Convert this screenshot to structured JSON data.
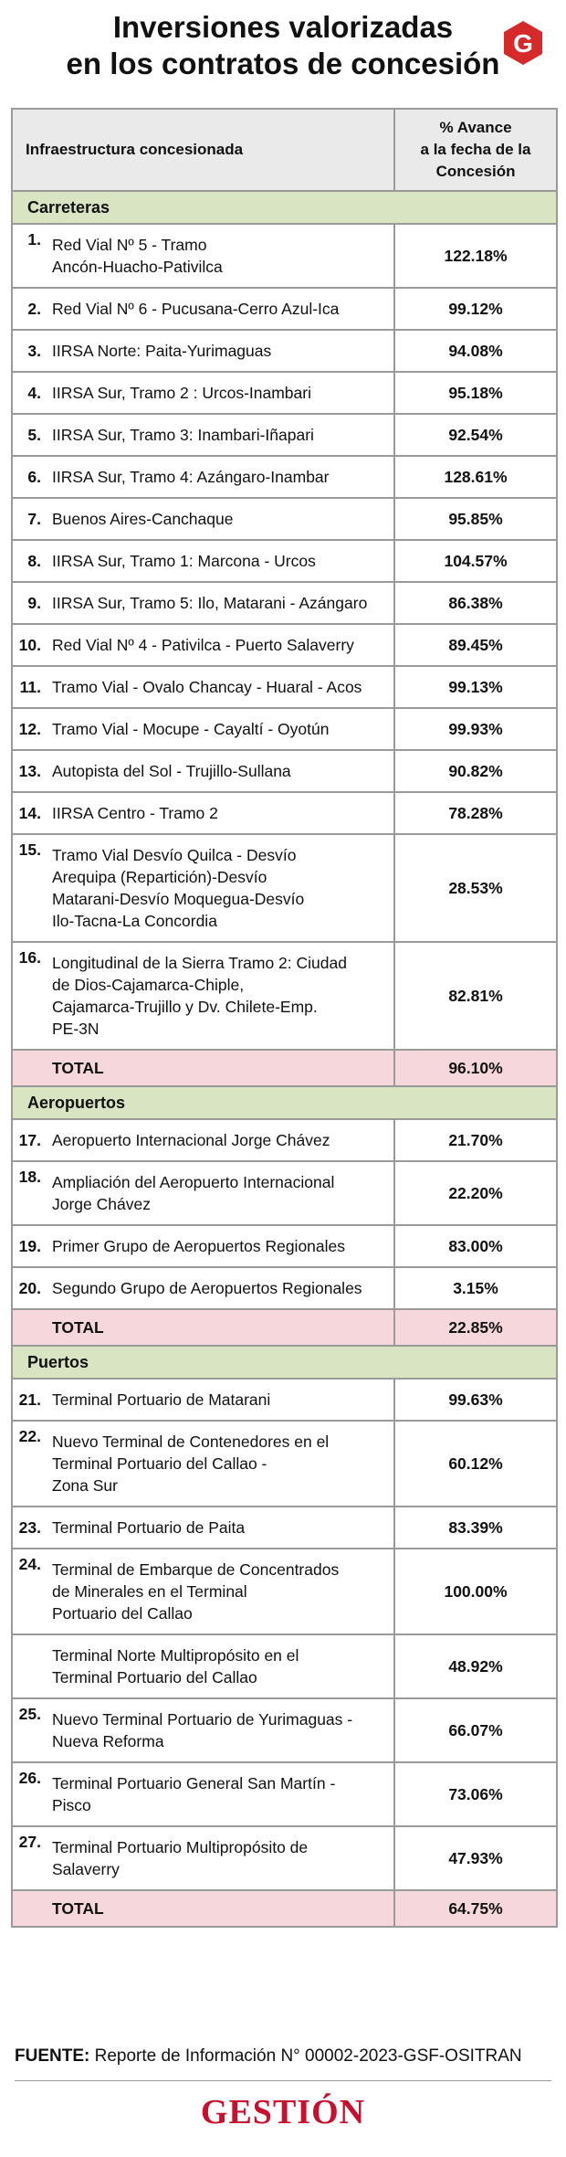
{
  "title_line1": "Inversiones valorizadas",
  "title_line2": "en los contratos de concesión",
  "logo": {
    "icon": "gestion-g-logo",
    "color": "#d62a2a"
  },
  "table": {
    "col_name_header": "Infraestructura concesionada",
    "col_value_header_lines": [
      "% Avance",
      "a la fecha de la",
      "Concesión"
    ],
    "sections": [
      {
        "label": "Carreteras",
        "rows": [
          {
            "num": "1.",
            "lines": [
              "Red Vial Nº 5 - Tramo",
              "Ancón-Huacho-Pativilca"
            ],
            "value": "122.18%"
          },
          {
            "num": "2.",
            "lines": [
              "Red Vial Nº 6 - Pucusana-Cerro Azul-Ica"
            ],
            "value": "99.12%"
          },
          {
            "num": "3.",
            "lines": [
              "IIRSA Norte: Paita-Yurimaguas"
            ],
            "value": "94.08%"
          },
          {
            "num": "4.",
            "lines": [
              "IIRSA Sur, Tramo 2 : Urcos-Inambari"
            ],
            "value": "95.18%"
          },
          {
            "num": "5.",
            "lines": [
              "IIRSA Sur, Tramo 3: Inambari-Iñapari"
            ],
            "value": "92.54%"
          },
          {
            "num": "6.",
            "lines": [
              "IIRSA Sur, Tramo 4: Azángaro-Inambar"
            ],
            "value": "128.61%"
          },
          {
            "num": "7.",
            "lines": [
              "Buenos Aires-Canchaque"
            ],
            "value": "95.85%"
          },
          {
            "num": "8.",
            "lines": [
              "IIRSA Sur, Tramo 1: Marcona - Urcos"
            ],
            "value": "104.57%"
          },
          {
            "num": "9.",
            "lines": [
              "IIRSA Sur, Tramo 5: Ilo, Matarani - Azángaro"
            ],
            "value": "86.38%"
          },
          {
            "num": "10.",
            "lines": [
              "Red Vial Nº 4 - Pativilca - Puerto Salaverry"
            ],
            "value": "89.45%"
          },
          {
            "num": "11.",
            "lines": [
              "Tramo Vial - Ovalo Chancay - Huaral - Acos"
            ],
            "value": "99.13%"
          },
          {
            "num": "12.",
            "lines": [
              "Tramo Vial - Mocupe - Cayaltí - Oyotún"
            ],
            "value": "99.93%"
          },
          {
            "num": "13.",
            "lines": [
              "Autopista del Sol - Trujillo-Sullana"
            ],
            "value": "90.82%"
          },
          {
            "num": "14.",
            "lines": [
              "IIRSA Centro - Tramo 2"
            ],
            "value": "78.28%"
          },
          {
            "num": "15.",
            "lines": [
              "Tramo Vial Desvío Quilca - Desvío",
              "Arequipa (Repartición)-Desvío",
              "Matarani-Desvío Moquegua-Desvío",
              "Ilo-Tacna-La Concordia"
            ],
            "value": "28.53%"
          },
          {
            "num": "16.",
            "lines": [
              "Longitudinal de la Sierra Tramo 2: Ciudad",
              "de Dios-Cajamarca-Chiple,",
              "Cajamarca-Trujillo y Dv. Chilete-Emp.",
              "PE-3N"
            ],
            "value": "82.81%"
          }
        ],
        "total_label": "TOTAL",
        "total_value": "96.10%"
      },
      {
        "label": "Aeropuertos",
        "rows": [
          {
            "num": "17.",
            "lines": [
              "Aeropuerto Internacional Jorge Chávez"
            ],
            "value": "21.70%"
          },
          {
            "num": "18.",
            "lines": [
              "Ampliación del Aeropuerto Internacional",
              "Jorge Chávez"
            ],
            "value": "22.20%"
          },
          {
            "num": "19.",
            "lines": [
              "Primer Grupo de Aeropuertos Regionales"
            ],
            "value": "83.00%"
          },
          {
            "num": "20.",
            "lines": [
              "Segundo Grupo de Aeropuertos Regionales"
            ],
            "value": "3.15%"
          }
        ],
        "total_label": "TOTAL",
        "total_value": "22.85%"
      },
      {
        "label": "Puertos",
        "rows": [
          {
            "num": "21.",
            "lines": [
              "Terminal Portuario de Matarani"
            ],
            "value": "99.63%"
          },
          {
            "num": "22.",
            "lines": [
              "Nuevo Terminal de Contenedores en el",
              "Terminal Portuario del Callao -",
              "Zona Sur"
            ],
            "value": "60.12%"
          },
          {
            "num": "23.",
            "lines": [
              "Terminal Portuario de Paita"
            ],
            "value": "83.39%"
          },
          {
            "num": "24.",
            "lines": [
              "Terminal de Embarque de Concentrados",
              "de Minerales en el Terminal",
              "Portuario del Callao"
            ],
            "value": "100.00%"
          },
          {
            "num": "",
            "lines": [
              "Terminal Norte Multipropósito en el",
              "Terminal Portuario del Callao"
            ],
            "value": "48.92%"
          },
          {
            "num": "25.",
            "lines": [
              "Nuevo Terminal Portuario de Yurimaguas -",
              "Nueva Reforma"
            ],
            "value": "66.07%"
          },
          {
            "num": "26.",
            "lines": [
              "Terminal Portuario General San Martín -",
              "Pisco"
            ],
            "value": "73.06%"
          },
          {
            "num": "27.",
            "lines": [
              "Terminal Portuario Multipropósito de",
              "Salaverry"
            ],
            "value": "47.93%"
          }
        ],
        "total_label": "TOTAL",
        "total_value": "64.75%"
      }
    ]
  },
  "source": {
    "label": "FUENTE:",
    "text": " Reporte de Información N° 00002-2023-GSF-OSITRAN"
  },
  "brand": "GESTIÓN",
  "colors": {
    "section_bg": "#d8e4c2",
    "total_bg": "#f6d8dc",
    "header_bg": "#eaeaea",
    "brand_red": "#c8102e"
  }
}
